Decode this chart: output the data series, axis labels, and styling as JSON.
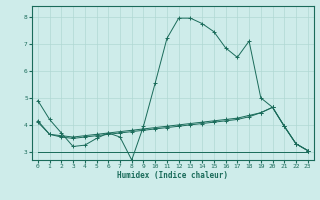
{
  "xlabel": "Humidex (Indice chaleur)",
  "xlim": [
    -0.5,
    23.5
  ],
  "ylim": [
    2.7,
    8.4
  ],
  "yticks": [
    3,
    4,
    5,
    6,
    7,
    8
  ],
  "xticks": [
    0,
    1,
    2,
    3,
    4,
    5,
    6,
    7,
    8,
    9,
    10,
    11,
    12,
    13,
    14,
    15,
    16,
    17,
    18,
    19,
    20,
    21,
    22,
    23
  ],
  "bg_color": "#ceecea",
  "line_color": "#1a6b5a",
  "grid_color": "#b0d8d4",
  "lines": [
    {
      "x": [
        0,
        1,
        2,
        3,
        4,
        5,
        6,
        7,
        8,
        9,
        10,
        11,
        12,
        13,
        14,
        15,
        16,
        17,
        18,
        19,
        20,
        21,
        22,
        23
      ],
      "y": [
        4.9,
        4.2,
        3.7,
        3.2,
        3.25,
        3.5,
        3.7,
        3.55,
        2.7,
        3.95,
        5.55,
        7.2,
        7.95,
        7.95,
        7.75,
        7.45,
        6.85,
        6.5,
        7.1,
        5.0,
        4.65,
        3.95,
        3.3,
        3.05
      ],
      "marker": "+"
    },
    {
      "x": [
        0,
        1,
        2,
        3,
        4,
        5,
        6,
        7,
        8,
        9,
        10,
        11,
        12,
        13,
        14,
        15,
        16,
        17,
        18,
        19,
        20,
        21,
        22,
        23
      ],
      "y": [
        4.1,
        3.65,
        3.6,
        3.55,
        3.6,
        3.65,
        3.7,
        3.75,
        3.8,
        3.85,
        3.9,
        3.95,
        4.0,
        4.05,
        4.1,
        4.15,
        4.2,
        4.25,
        4.35,
        4.45,
        4.65,
        3.95,
        3.3,
        3.05
      ],
      "marker": "+"
    },
    {
      "x": [
        0,
        1,
        2,
        3,
        4,
        5,
        6,
        7,
        8,
        9,
        10,
        11,
        12,
        13,
        14,
        15,
        16,
        17,
        18,
        19,
        20,
        21,
        22,
        23
      ],
      "y": [
        4.15,
        3.65,
        3.55,
        3.5,
        3.55,
        3.6,
        3.65,
        3.7,
        3.75,
        3.8,
        3.85,
        3.9,
        3.95,
        4.0,
        4.05,
        4.1,
        4.15,
        4.2,
        4.3,
        4.45,
        4.65,
        3.95,
        3.3,
        3.05
      ],
      "marker": "+"
    },
    {
      "x": [
        0,
        23
      ],
      "y": [
        3.0,
        3.0
      ],
      "marker": null
    }
  ]
}
